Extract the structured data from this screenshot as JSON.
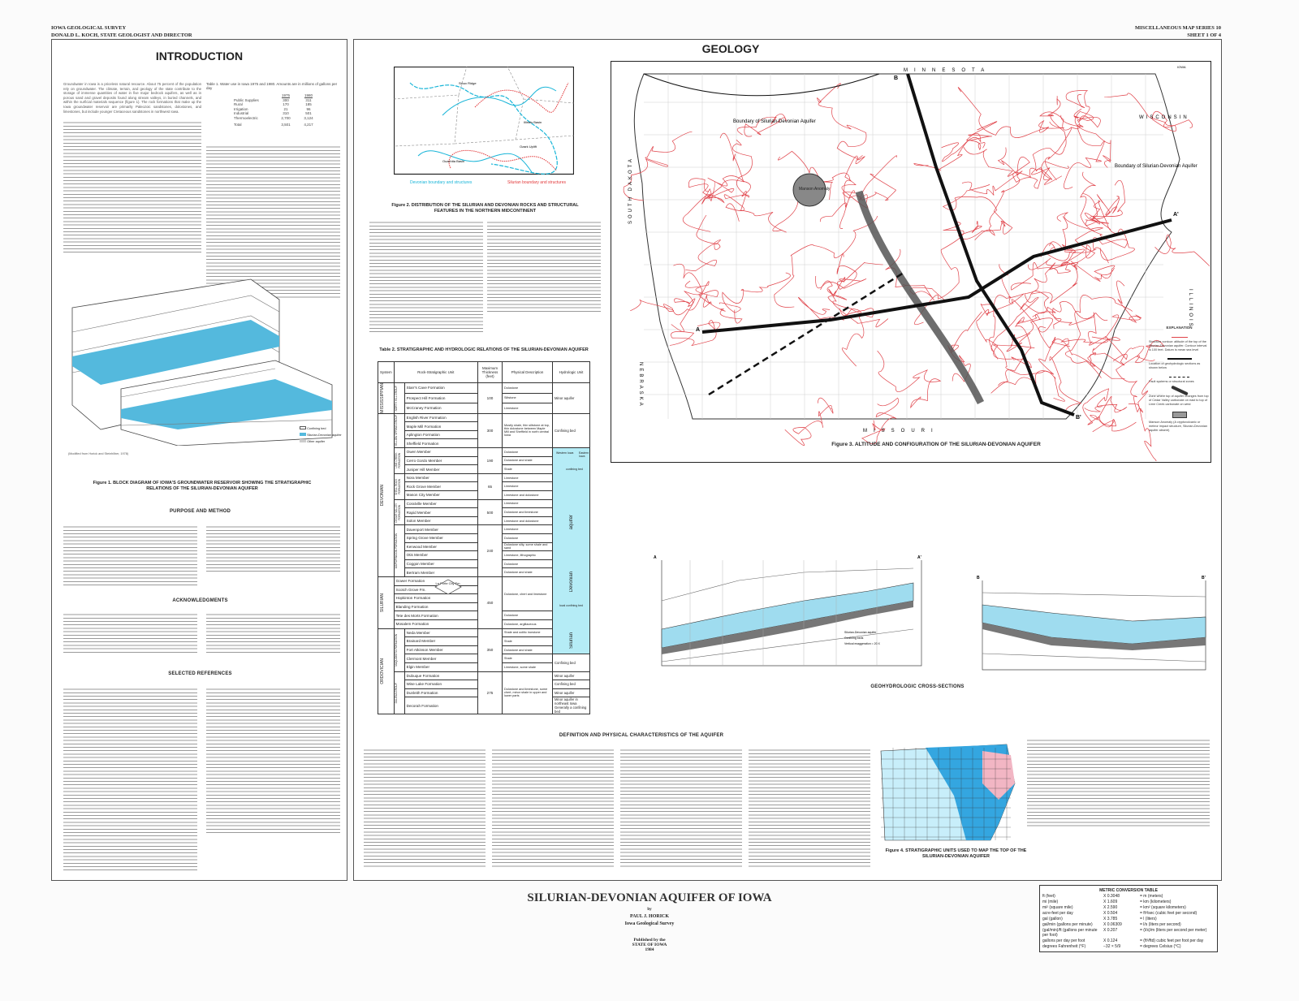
{
  "header": {
    "agency": "IOWA GEOLOGICAL SURVEY",
    "director": "DONALD L. KOCH, STATE GEOLOGIST AND DIRECTOR",
    "series": "MISCELLANEOUS MAP SERIES 10",
    "sheet": "SHEET 1 OF 4"
  },
  "intro": {
    "title": "INTRODUCTION",
    "paragraph": "Groundwater in Iowa is a priceless natural resource. About 75 percent of the population rely on groundwater. The climate, terrain, and geology of the state contribute to the storage of immense quantities of water in five major bedrock aquifers, as well as in porous sand and gravel deposits found along stream valleys, in buried channels, and within the surficial materials sequence (figure 1). The rock formations that make up the Iowa groundwater reservoir are primarily Paleozoic sandstones, dolostones, and limestones, but include younger Cretaceous sandstones in northwest Iowa.",
    "table1": {
      "caption": "Table 1. Water use in Iowa 1975 and 1980. Amounts are in millions of gallons per day",
      "years": [
        "1975",
        "1980"
      ],
      "rows": [
        [
          "Public Supplies",
          "300",
          "311"
        ],
        [
          "Rural",
          "170",
          "185"
        ],
        [
          "Irrigation",
          "21",
          "96"
        ],
        [
          "Industrial",
          "310",
          "501"
        ],
        [
          "Thermoelectric",
          "2,700",
          "3,124"
        ]
      ],
      "total": [
        "Total",
        "3,501",
        "4,217"
      ]
    },
    "figure1_caption": "Figure 1. BLOCK DIAGRAM OF IOWA'S GROUNDWATER RESERVOIR SHOWING THE STRATIGRAPHIC RELATIONS OF THE SILURIAN-DEVONIAN AQUIFER",
    "figure1_credit": "(Modified from Horick and Steinhilber, 1978)",
    "figure1_legend": [
      "Confining bed",
      "Silurian-Devonian aquifer",
      "Other aquifer"
    ],
    "purpose_title": "PURPOSE AND METHOD",
    "ack_title": "ACKNOWLEDGMENTS",
    "refs_title": "SELECTED REFERENCES"
  },
  "figure2": {
    "caption": "Figure 2. DISTRIBUTION OF THE SILURIAN AND DEVONIAN ROCKS AND STRUCTURAL FEATURES IN THE NORTHERN MIDCONTINENT",
    "legend_devonian": "Devonian boundary and structures",
    "legend_silurian": "Silurian boundary and structures",
    "labels": [
      "Sioux Ridge",
      "Illinois Basin",
      "Ozark Uplift",
      "Ouachita Basin"
    ],
    "colors": {
      "devonian": "#19b5d8",
      "silurian": "#e2383a"
    }
  },
  "table2": {
    "title": "Table 2. STRATIGRAPHIC AND HYDROLOGIC RELATIONS OF THE SILURIAN-DEVONIAN AQUIFER",
    "headers": [
      "System",
      "Rock-Stratigraphic Unit",
      "Maximum Thickness (feet)",
      "Physical Description",
      "Hydrologic Unit"
    ],
    "systems": [
      {
        "name": "MISSISSIPPIAN",
        "groups": [
          {
            "name": "NORTH HILL GROUP",
            "thickness": "100",
            "units": [
              {
                "name": "Starr's Cave Formation",
                "desc": "Dolostone"
              },
              {
                "name": "Prospect Hill Formation",
                "desc": "Siltstone"
              },
              {
                "name": "McCraney Formation",
                "desc": "Limestone"
              }
            ]
          }
        ]
      },
      {
        "name": "DEVONIAN",
        "groups": [
          {
            "name": "YELLOW SPRING GROUP",
            "thickness": "300",
            "desc": "Mostly shale, thin siltstone at top, thin dolostone between Maple Mill and Sheffield in north central Iowa",
            "units": [
              {
                "name": "English River Formation"
              },
              {
                "name": "Maple Mill Formation"
              },
              {
                "name": "Aplington Formation"
              },
              {
                "name": "Sheffield Formation"
              }
            ]
          },
          {
            "name": "LIME CREEK FORMATION",
            "thickness": "190",
            "units": [
              {
                "name": "Owen Member",
                "desc": "Dolostone"
              },
              {
                "name": "Cerro Gordo Member",
                "desc": "Dolostone and shale"
              },
              {
                "name": "Juniper Hill Member",
                "desc": "Shale"
              }
            ]
          },
          {
            "name": "SHELL ROCK FORMATION",
            "thickness": "65",
            "units": [
              {
                "name": "Nora Member",
                "desc": "Limestone"
              },
              {
                "name": "Rock Grove Member",
                "desc": "Limestone"
              },
              {
                "name": "Mason City Member",
                "desc": "Limestone and dolostone"
              }
            ]
          },
          {
            "name": "CEDAR VALLEY FORMATION",
            "thickness": "500",
            "units": [
              {
                "name": "Coralville Member",
                "desc": "Limestone"
              },
              {
                "name": "Rapid Member",
                "desc": "Dolostone and limestone"
              },
              {
                "name": "Solon Member",
                "desc": "Limestone and dolostone"
              }
            ]
          },
          {
            "name": "WAPSIPINICON FORMATION",
            "thickness": "240",
            "units": [
              {
                "name": "Davenport Member",
                "desc": "Limestone"
              },
              {
                "name": "Spring Grove Member",
                "desc": "Dolostone"
              },
              {
                "name": "Kenwood Member",
                "desc": "Dolostone silty, some shale and sand"
              },
              {
                "name": "Otis Member",
                "desc": "Limestone, lithographic"
              },
              {
                "name": "Coggon Member",
                "desc": "Dolostone"
              },
              {
                "name": "Bertram Member",
                "desc": "Dolostone and shale"
              }
            ]
          }
        ]
      },
      {
        "name": "SILURIAN",
        "groups": [
          {
            "name": "",
            "thickness": "450",
            "units": [
              {
                "name": "Gower Formation",
                "desc": "Dolostone, chert and limestone",
                "descSpan": 4
              },
              {
                "name": "Scotch Grove Fm."
              },
              {
                "name": "Hopkinton Formation"
              },
              {
                "name": "Blanding Formation"
              },
              {
                "name": "Tete des Morts Formation",
                "desc": "Dolostone"
              },
              {
                "name": "Mosalem Formation",
                "desc": "Dolostone, argillaceous"
              }
            ]
          }
        ]
      },
      {
        "name": "ORDOVICIAN",
        "groups": [
          {
            "name": "MAQUOKETA FORMATION",
            "thickness": "350",
            "units": [
              {
                "name": "Neda Member",
                "desc": "Shale and oolitic ironstone"
              },
              {
                "name": "Brainard Member",
                "desc": "Shale"
              },
              {
                "name": "Fort Atkinson Member",
                "desc": "Dolostone and shale"
              },
              {
                "name": "Clermont Member",
                "desc": "Shale"
              },
              {
                "name": "Elgin Member",
                "desc": "Limestone, some shale"
              }
            ]
          },
          {
            "name": "GALENA GROUP",
            "thickness": "275",
            "desc": "Dolostone and limestone, some chert, minor shale in upper and lower parts",
            "units": [
              {
                "name": "Dubuque Formation"
              },
              {
                "name": "Wise Lake Formation"
              },
              {
                "name": "Dunleith Formation"
              },
              {
                "name": "Decorah Formation"
              }
            ]
          }
        ]
      }
    ],
    "hydro": [
      {
        "text": "Minor aquifer",
        "rows": 3
      },
      {
        "text": "Confining bed",
        "rows": 4
      },
      {
        "text": "Western Iowa / Eastern Iowa — confining bed — Devonian — Silurian — aquifer",
        "rows": 24,
        "aquifer": true,
        "labels": [
          "Western Iowa",
          "Eastern Iowa",
          "confining bed",
          "aquifer",
          "Devonian",
          "local confining bed",
          "Silurian"
        ]
      },
      {
        "text": "Confining bed",
        "rows": 2
      },
      {
        "text": "Minor aquifer",
        "rows": 1
      },
      {
        "text": "Confining bed",
        "rows": 1
      },
      {
        "text": "Minor aquifer",
        "rows": 1
      },
      {
        "text": "Minor aquifer in northeast Iowa Generally a confining bed",
        "rows": 4
      }
    ],
    "laporte": "La Porte City Fm."
  },
  "geology": {
    "title": "GEOLOGY",
    "map_corner": "IOWA",
    "states": [
      "MINNESOTA",
      "WISCONSIN",
      "SOUTH DAKOTA",
      "NEBRASKA",
      "ILLINOIS",
      "MISSOURI"
    ],
    "labels": {
      "boundary_w": "Boundary of Silurian-Devonian Aquifer",
      "boundary_e": "Boundary of Silurian-Devonian Aquifer",
      "manson": "Manson Anomaly",
      "a": "A",
      "a2": "A'",
      "b": "B",
      "b2": "B'"
    },
    "colors": {
      "contour": "#e0434a",
      "section": "#111111",
      "zone": "#555555"
    },
    "explanation": {
      "title": "EXPLANATION",
      "items": [
        "Structure contour: altitude of the top of the Silurian-Devonian aquifer. Contour interval is 100 feet. Datum is mean sea level",
        "Location of geohydrologic sections as shown below",
        "Fault systems or structural zones",
        "Zone where top of aquifer changes from top of Cedar Valley carbonate on east to top of Lime Creek carbonate on west",
        "Manson Anomaly (A cryptovolcanic or meteor impact structure, Silurian-Devonian aquifer absent)"
      ]
    },
    "figure3_caption": "Figure 3. ALTITUDE AND CONFIGURATION OF THE SILURIAN-DEVONIAN AQUIFER"
  },
  "sections": {
    "title": "GEOHYDROLOGIC CROSS-SECTIONS",
    "legend": [
      "Silurian-Devonian aquifer",
      "Confining beds",
      "Vertical exaggeration = 20 X"
    ]
  },
  "definition": {
    "title": "DEFINITION AND PHYSICAL CHARACTERISTICS OF THE AQUIFER",
    "figure4_caption": "Figure 4. STRATIGRAPHIC UNITS USED TO MAP THE TOP OF THE SILURIAN-DEVONIAN AQUIFER"
  },
  "title_block": {
    "title": "SILURIAN-DEVONIAN AQUIFER OF IOWA",
    "by": "by",
    "author": "PAUL J. HORICK",
    "affiliation": "Iowa Geological Survey",
    "published": "Published by the",
    "state": "STATE OF IOWA",
    "year": "1984"
  },
  "metric": {
    "title": "METRIC CONVERSION TABLE",
    "rows": [
      [
        "ft (feet)",
        "X 0.3048",
        "= m (meters)"
      ],
      [
        "mi (mile)",
        "X 1.609",
        "= km (kilometers)"
      ],
      [
        "mi² (square mile)",
        "X 2.590",
        "= km² (square kilometers)"
      ],
      [
        "acre-feet per day",
        "X 0.504",
        "= ft³/sec (cubic feet per second)"
      ],
      [
        "gal (gallon)",
        "X 3.785",
        "= l (liters)"
      ],
      [
        "gal/min (gallons per minute)",
        "X 0.06309",
        "= l/s (liters per second)"
      ],
      [
        "(gal/min)/ft (gallons per minute per foot)",
        "X 0.207",
        "= (l/s)/m (liters per second per meter)"
      ],
      [
        "gallons per day per foot",
        "X 0.124",
        "= (ft³/ftd) cubic feet per foot per day"
      ],
      [
        "degrees Fahrenheit (°F)",
        "−32 × 5/9",
        "= degrees Celsius (°C)"
      ]
    ]
  }
}
